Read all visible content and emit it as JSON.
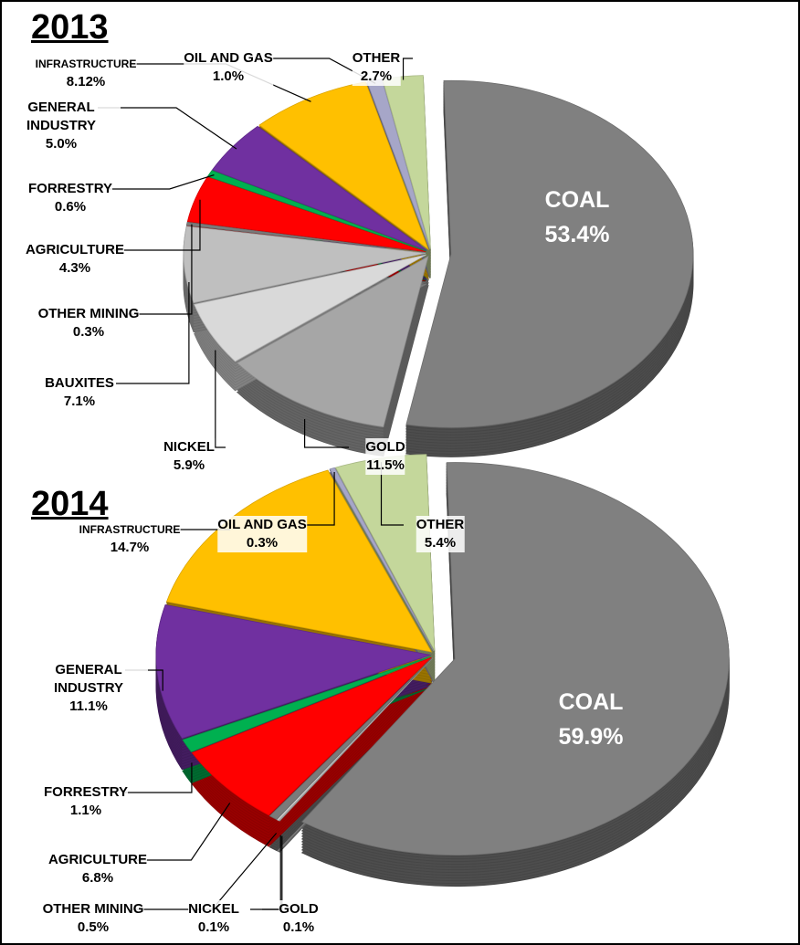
{
  "chart_data": [
    {
      "type": "pie",
      "title": "2013",
      "categories": [
        "COAL",
        "GOLD",
        "NICKEL",
        "BAUXITES",
        "OTHER MINING",
        "AGRICULTURE",
        "FORRESTRY",
        "GENERAL INDUSTRY",
        "INFRASTRUCTURE",
        "OIL AND GAS",
        "OTHER"
      ],
      "values": [
        53.4,
        11.5,
        5.9,
        7.1,
        0.3,
        4.3,
        0.6,
        5.0,
        8.12,
        1.0,
        2.7
      ],
      "value_labels": [
        "53.4%",
        "11.5%",
        "5.9%",
        "7.1%",
        "0.3%",
        "4.3%",
        "0.6%",
        "5.0%",
        "8.12%",
        "1.0%",
        "2.7%"
      ],
      "colors": [
        "#808080",
        "#a6a6a6",
        "#d9d9d9",
        "#bfbfbf",
        "#7a7a7a",
        "#ff0000",
        "#00b050",
        "#7030a0",
        "#ffc000",
        "#a6a6c8",
        "#c4d79b"
      ]
    },
    {
      "type": "pie",
      "title": "2014",
      "categories": [
        "COAL",
        "GOLD",
        "NICKEL",
        "OTHER MINING",
        "AGRICULTURE",
        "FORRESTRY",
        "GENERAL INDUSTRY",
        "INFRASTRUCTURE",
        "OIL AND GAS",
        "OTHER"
      ],
      "values": [
        59.9,
        0.1,
        0.1,
        0.5,
        6.8,
        1.1,
        11.1,
        14.7,
        0.3,
        5.4
      ],
      "value_labels": [
        "59.9%",
        "0.1%",
        "0.1%",
        "0.5%",
        "6.8%",
        "1.1%",
        "11.1%",
        "14.7%",
        "0.3%",
        "5.4%"
      ],
      "colors": [
        "#808080",
        "#a6a6a6",
        "#d9d9d9",
        "#7a7a7a",
        "#ff0000",
        "#00b050",
        "#7030a0",
        "#ffc000",
        "#a6a6c8",
        "#c4d79b"
      ]
    }
  ]
}
